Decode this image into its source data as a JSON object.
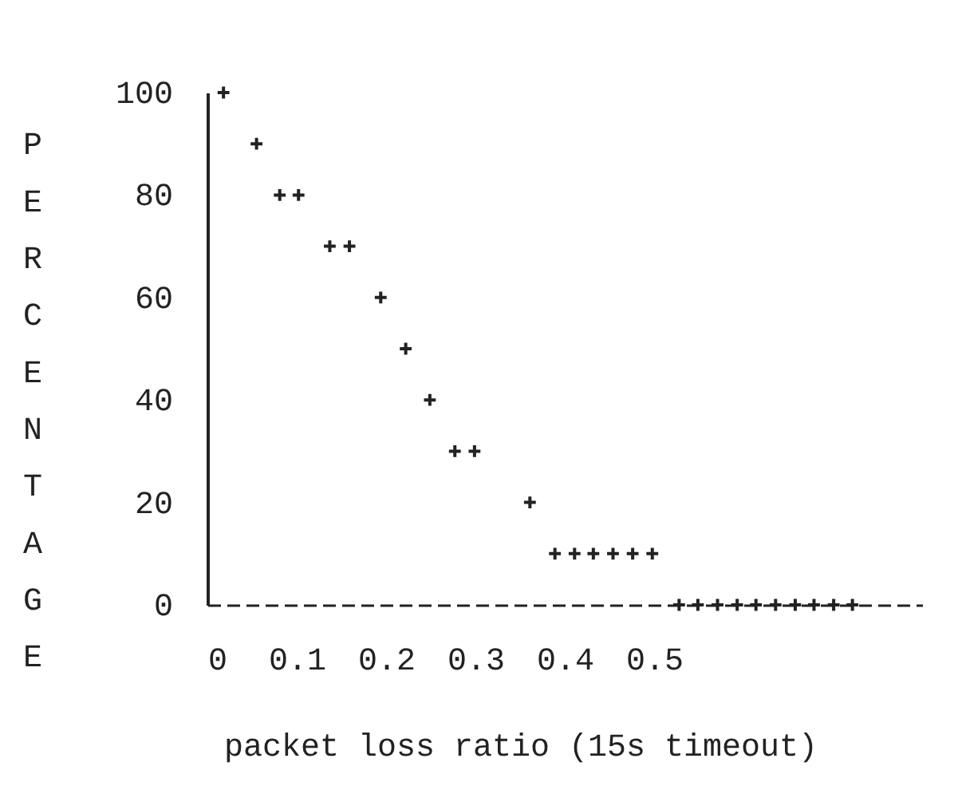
{
  "chart_data": {
    "type": "scatter",
    "xlabel": "packet loss ratio (15s timeout)",
    "ylabel": "PERCENTAGE",
    "x": [
      0.018,
      0.055,
      0.081,
      0.102,
      0.137,
      0.159,
      0.194,
      0.222,
      0.249,
      0.277,
      0.299,
      0.361,
      0.389,
      0.411,
      0.432,
      0.454,
      0.476,
      0.498,
      0.528,
      0.549,
      0.571,
      0.593,
      0.614,
      0.636,
      0.658,
      0.679,
      0.701,
      0.722
    ],
    "values": [
      100,
      90,
      80,
      80,
      70,
      70,
      60,
      50,
      40,
      30,
      30,
      20,
      10,
      10,
      10,
      10,
      10,
      10,
      0,
      0,
      0,
      0,
      0,
      0,
      0,
      0,
      0,
      0
    ],
    "color": "#222222",
    "marker": "cross",
    "grid": false,
    "legend": false,
    "xlim": [
      0,
      0.8
    ],
    "xticks": [
      0,
      0.1,
      0.2,
      0.3,
      0.4,
      0.5
    ],
    "ylim": [
      0,
      100
    ],
    "yticks": [
      0,
      20,
      40,
      60,
      80,
      100
    ]
  }
}
